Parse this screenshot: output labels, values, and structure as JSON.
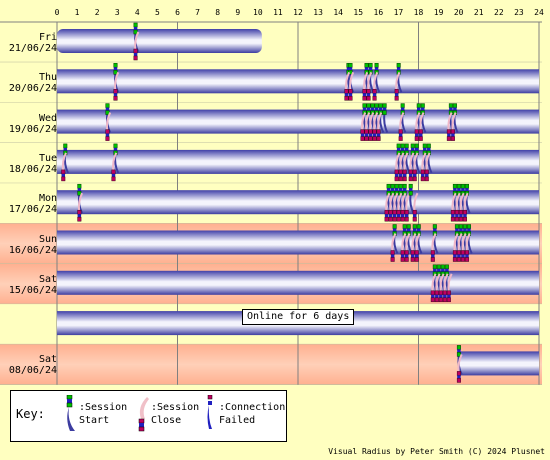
{
  "hours": [
    "0",
    "1",
    "2",
    "3",
    "4",
    "5",
    "6",
    "7",
    "8",
    "9",
    "10",
    "11",
    "12",
    "13",
    "14",
    "15",
    "16",
    "17",
    "18",
    "19",
    "20",
    "21",
    "22",
    "23",
    "24"
  ],
  "online_text": "Online for 6 days",
  "credit": "Visual Radius by Peter Smith (C) 2024 Plusnet",
  "key": {
    "title": "Key:",
    "start": ":Session Start",
    "close": ":Session Close",
    "failed": ":Connection Failed"
  },
  "colors": {
    "weekday_bg": "#ffffc0",
    "weekend_bg": "#ffc0a0",
    "session_light": "#e8e8f8",
    "session_dark": "#3c3ca0",
    "start_marker": "#00c000",
    "close_marker": "#c00060",
    "failed_marker": "#2020c0"
  },
  "days": [
    {
      "id": "fri",
      "day": "Fri",
      "date": "21/06/24",
      "weekend": false,
      "sessions": [
        [
          0,
          10.2
        ]
      ],
      "events": [
        [
          3.9,
          "start"
        ],
        [
          3.9,
          "close"
        ]
      ]
    },
    {
      "id": "thu",
      "day": "Thu",
      "date": "20/06/24",
      "weekend": false,
      "sessions": [
        [
          0,
          24
        ]
      ],
      "events": [
        [
          2.9,
          "start"
        ],
        [
          2.9,
          "close"
        ],
        [
          14.5,
          "start"
        ],
        [
          14.6,
          "start"
        ],
        [
          14.4,
          "close"
        ],
        [
          14.6,
          "close"
        ],
        [
          15.4,
          "start"
        ],
        [
          15.6,
          "start"
        ],
        [
          15.9,
          "start"
        ],
        [
          15.3,
          "close"
        ],
        [
          15.5,
          "close"
        ],
        [
          15.8,
          "close"
        ],
        [
          17.0,
          "start"
        ],
        [
          16.9,
          "close"
        ]
      ]
    },
    {
      "id": "wed",
      "day": "Wed",
      "date": "19/06/24",
      "weekend": false,
      "sessions": [
        [
          0,
          24
        ]
      ],
      "events": [
        [
          2.5,
          "start"
        ],
        [
          2.5,
          "close"
        ],
        [
          15.3,
          "start"
        ],
        [
          15.5,
          "start"
        ],
        [
          15.7,
          "start"
        ],
        [
          15.9,
          "start"
        ],
        [
          16.1,
          "start"
        ],
        [
          16.3,
          "start"
        ],
        [
          15.2,
          "close"
        ],
        [
          15.4,
          "close"
        ],
        [
          15.6,
          "close"
        ],
        [
          15.8,
          "close"
        ],
        [
          16.0,
          "close"
        ],
        [
          17.2,
          "start"
        ],
        [
          17.1,
          "close"
        ],
        [
          18.0,
          "start"
        ],
        [
          18.2,
          "start"
        ],
        [
          17.9,
          "close"
        ],
        [
          18.1,
          "close"
        ],
        [
          19.6,
          "start"
        ],
        [
          19.8,
          "start"
        ],
        [
          19.5,
          "close"
        ],
        [
          19.7,
          "close"
        ]
      ]
    },
    {
      "id": "tue",
      "day": "Tue",
      "date": "18/06/24",
      "weekend": false,
      "sessions": [
        [
          0,
          24
        ]
      ],
      "events": [
        [
          0.4,
          "start"
        ],
        [
          0.3,
          "close"
        ],
        [
          2.9,
          "start"
        ],
        [
          2.8,
          "close"
        ],
        [
          17.0,
          "start"
        ],
        [
          17.2,
          "start"
        ],
        [
          17.4,
          "start"
        ],
        [
          16.9,
          "close"
        ],
        [
          17.1,
          "close"
        ],
        [
          17.3,
          "close"
        ],
        [
          17.7,
          "start"
        ],
        [
          17.9,
          "start"
        ],
        [
          17.6,
          "close"
        ],
        [
          17.8,
          "close"
        ],
        [
          18.3,
          "start"
        ],
        [
          18.5,
          "start"
        ],
        [
          18.2,
          "close"
        ],
        [
          18.4,
          "close"
        ]
      ]
    },
    {
      "id": "mon",
      "day": "Mon",
      "date": "17/06/24",
      "weekend": false,
      "sessions": [
        [
          0,
          24
        ]
      ],
      "events": [
        [
          1.1,
          "start"
        ],
        [
          1.1,
          "close"
        ],
        [
          16.5,
          "start"
        ],
        [
          16.7,
          "start"
        ],
        [
          16.9,
          "start"
        ],
        [
          17.1,
          "start"
        ],
        [
          17.3,
          "start"
        ],
        [
          16.4,
          "close"
        ],
        [
          16.6,
          "close"
        ],
        [
          16.8,
          "close"
        ],
        [
          17.0,
          "close"
        ],
        [
          17.2,
          "close"
        ],
        [
          17.4,
          "close"
        ],
        [
          17.6,
          "start"
        ],
        [
          17.8,
          "close"
        ],
        [
          19.8,
          "start"
        ],
        [
          20.0,
          "start"
        ],
        [
          20.2,
          "start"
        ],
        [
          20.4,
          "start"
        ],
        [
          19.7,
          "close"
        ],
        [
          19.9,
          "close"
        ],
        [
          20.1,
          "close"
        ],
        [
          20.3,
          "close"
        ]
      ]
    },
    {
      "id": "sun",
      "day": "Sun",
      "date": "16/06/24",
      "weekend": true,
      "sessions": [
        [
          0,
          24
        ]
      ],
      "events": [
        [
          16.8,
          "start"
        ],
        [
          16.7,
          "close"
        ],
        [
          17.3,
          "start"
        ],
        [
          17.5,
          "start"
        ],
        [
          17.2,
          "close"
        ],
        [
          17.4,
          "close"
        ],
        [
          17.8,
          "start"
        ],
        [
          18.0,
          "start"
        ],
        [
          17.7,
          "close"
        ],
        [
          17.9,
          "close"
        ],
        [
          18.8,
          "start"
        ],
        [
          18.7,
          "close"
        ],
        [
          19.9,
          "start"
        ],
        [
          20.1,
          "start"
        ],
        [
          20.3,
          "start"
        ],
        [
          20.5,
          "start"
        ],
        [
          19.8,
          "close"
        ],
        [
          20.0,
          "close"
        ],
        [
          20.2,
          "close"
        ],
        [
          20.4,
          "close"
        ]
      ]
    },
    {
      "id": "sat1",
      "day": "Sat",
      "date": "15/06/24",
      "weekend": true,
      "sessions": [
        [
          0,
          24
        ]
      ],
      "events": [
        [
          18.8,
          "start"
        ],
        [
          19.0,
          "start"
        ],
        [
          19.2,
          "start"
        ],
        [
          19.4,
          "start"
        ],
        [
          18.7,
          "close"
        ],
        [
          18.9,
          "close"
        ],
        [
          19.1,
          "close"
        ],
        [
          19.3,
          "close"
        ],
        [
          19.5,
          "close"
        ]
      ]
    },
    {
      "id": "gap",
      "day": "",
      "date": "",
      "weekend": false,
      "sessions": [
        [
          0,
          24
        ]
      ],
      "events": []
    },
    {
      "id": "sat2",
      "day": "Sat",
      "date": "08/06/24",
      "weekend": true,
      "sessions": [
        [
          20.0,
          24
        ]
      ],
      "events": [
        [
          20.0,
          "start"
        ],
        [
          20.0,
          "close"
        ]
      ]
    }
  ]
}
